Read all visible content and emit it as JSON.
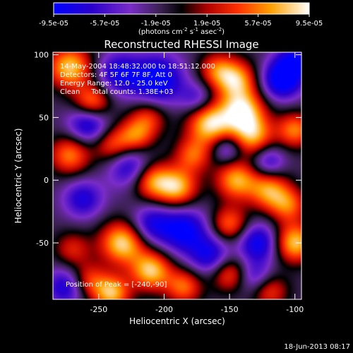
{
  "chart_data": {
    "type": "heatmap",
    "title": "Reconstructed RHESSI Image",
    "xlabel": "Heliocentric X (arcsec)",
    "ylabel": "Heliocentric Y (arcsec)",
    "xlim": [
      -285,
      -95
    ],
    "ylim": [
      -95,
      102
    ],
    "x_ticks": [
      -250,
      -200,
      -150,
      -100
    ],
    "y_ticks": [
      -50,
      0,
      50,
      100
    ],
    "colorbar": {
      "ticks": [
        -9.5e-05,
        -5.7e-05,
        -1.9e-05,
        1.9e-05,
        5.7e-05,
        9.5e-05
      ],
      "tick_labels": [
        "-9.5e-05",
        "-5.7e-05",
        "-1.9e-05",
        "1.9e-05",
        "5.7e-05",
        "9.5e-05"
      ],
      "unit_label": "(photons cm^-2 s^-1 asec^-2)",
      "range": [
        -9.5e-05,
        9.5e-05
      ]
    },
    "annotations": {
      "time": "14-May-2004 18:48:32.000 to 18:51:12.000",
      "detectors": "Detectors: 4F 5F 6F 7F 8F, Att 0",
      "energy": "Energy Range: 12.0 - 25.0 keV",
      "method": "Clean     Total counts: 1.38E+03",
      "peak": "Position of Peak = [-240,-90]"
    },
    "peak": [
      -240,
      -90
    ],
    "blobs": [
      {
        "x": -272,
        "y": 90,
        "a": 9.0,
        "s": 12
      },
      {
        "x": -255,
        "y": 62,
        "a": 7.5,
        "s": 10
      },
      {
        "x": -272,
        "y": 20,
        "a": 7.0,
        "s": 11
      },
      {
        "x": -240,
        "y": 28,
        "a": 5.5,
        "s": 10
      },
      {
        "x": -222,
        "y": 35,
        "a": 6.5,
        "s": 10
      },
      {
        "x": -212,
        "y": 50,
        "a": 5.0,
        "s": 10
      },
      {
        "x": -210,
        "y": 0,
        "a": 8.0,
        "s": 11
      },
      {
        "x": -190,
        "y": -6,
        "a": 8.5,
        "s": 11
      },
      {
        "x": -178,
        "y": 20,
        "a": 6.0,
        "s": 10
      },
      {
        "x": -165,
        "y": 45,
        "a": 9.5,
        "s": 12
      },
      {
        "x": -140,
        "y": 55,
        "a": 9.5,
        "s": 12
      },
      {
        "x": -145,
        "y": 80,
        "a": 8.0,
        "s": 11
      },
      {
        "x": -160,
        "y": 88,
        "a": 5.5,
        "s": 10
      },
      {
        "x": -132,
        "y": 35,
        "a": 7.5,
        "s": 11
      },
      {
        "x": -145,
        "y": 0,
        "a": 8.0,
        "s": 11
      },
      {
        "x": -120,
        "y": -8,
        "a": 7.5,
        "s": 11
      },
      {
        "x": -100,
        "y": 40,
        "a": 7.0,
        "s": 10
      },
      {
        "x": -150,
        "y": -35,
        "a": 6.5,
        "s": 10
      },
      {
        "x": -100,
        "y": -50,
        "a": 9.0,
        "s": 11
      },
      {
        "x": -105,
        "y": -20,
        "a": 6.0,
        "s": 10
      },
      {
        "x": -232,
        "y": -50,
        "a": 9.5,
        "s": 12
      },
      {
        "x": -210,
        "y": -72,
        "a": 9.0,
        "s": 11
      },
      {
        "x": -240,
        "y": -90,
        "a": 8.5,
        "s": 10
      },
      {
        "x": -258,
        "y": -80,
        "a": 5.5,
        "s": 10
      },
      {
        "x": -270,
        "y": -55,
        "a": 4.5,
        "s": 10
      },
      {
        "x": -185,
        "y": -85,
        "a": 6.5,
        "s": 10
      },
      {
        "x": -150,
        "y": -75,
        "a": 6.0,
        "s": 10
      },
      {
        "x": -120,
        "y": -88,
        "a": 6.0,
        "s": 10
      },
      {
        "x": -258,
        "y": 45,
        "a": -7.0,
        "s": 11
      },
      {
        "x": -205,
        "y": 80,
        "a": -8.0,
        "s": 14
      },
      {
        "x": -235,
        "y": 85,
        "a": -6.0,
        "s": 12
      },
      {
        "x": -110,
        "y": 80,
        "a": -8.5,
        "s": 11
      },
      {
        "x": -100,
        "y": 95,
        "a": -6.0,
        "s": 10
      },
      {
        "x": -225,
        "y": 10,
        "a": -6.5,
        "s": 12
      },
      {
        "x": -262,
        "y": -15,
        "a": -5.5,
        "s": 11
      },
      {
        "x": -185,
        "y": -40,
        "a": -7.5,
        "s": 13
      },
      {
        "x": -210,
        "y": -35,
        "a": -5.5,
        "s": 11
      },
      {
        "x": -128,
        "y": -50,
        "a": -7.0,
        "s": 11
      },
      {
        "x": -165,
        "y": -60,
        "a": -6.0,
        "s": 11
      },
      {
        "x": -130,
        "y": -78,
        "a": -5.0,
        "s": 10
      },
      {
        "x": -275,
        "y": -85,
        "a": -6.0,
        "s": 11
      },
      {
        "x": -175,
        "y": 65,
        "a": -4.0,
        "s": 9
      },
      {
        "x": -120,
        "y": 15,
        "a": -5.0,
        "s": 9
      },
      {
        "x": -152,
        "y": 25,
        "a": -4.5,
        "s": 8
      }
    ]
  },
  "footer": {
    "timestamp": "18-Jun-2013 08:17"
  }
}
